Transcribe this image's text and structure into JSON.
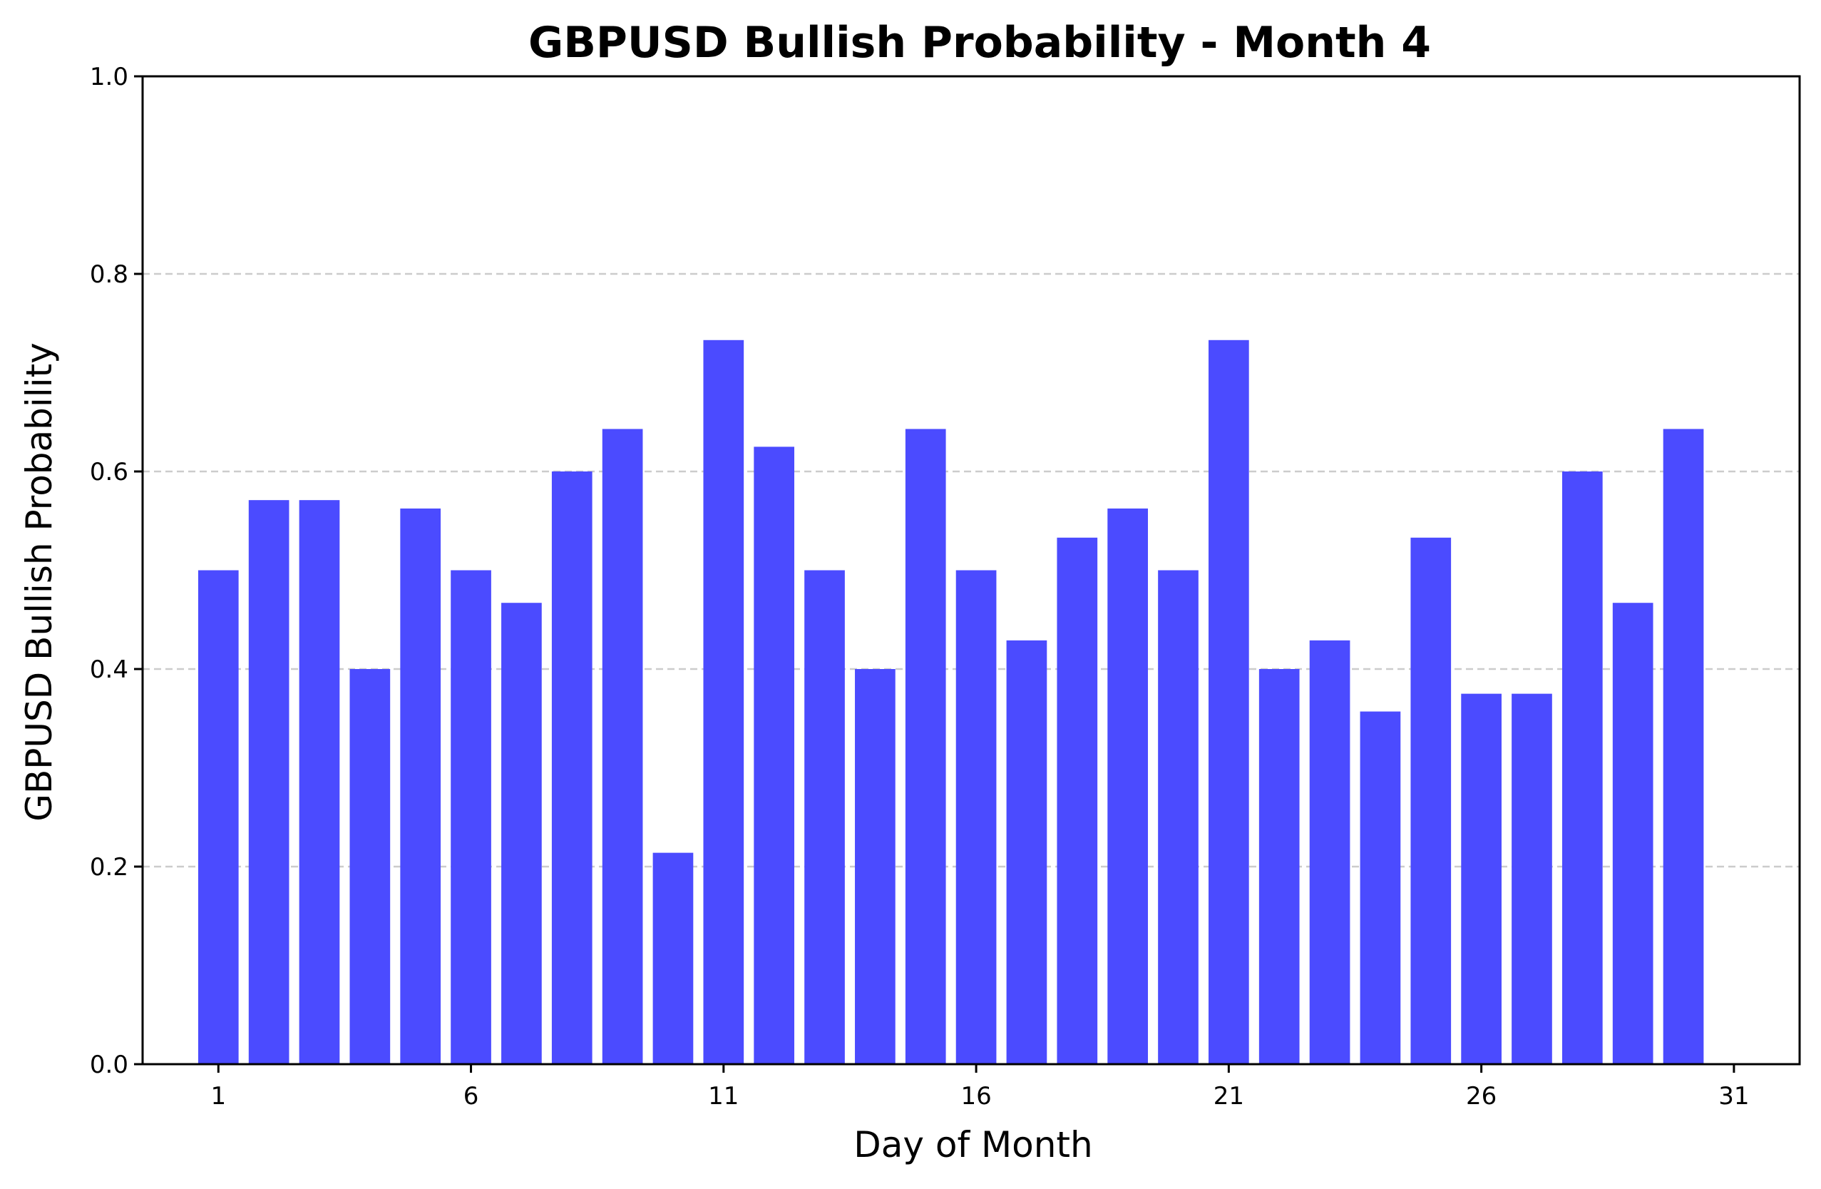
{
  "chart_data": {
    "type": "bar",
    "title": "GBPUSD Bullish Probability - Month 4",
    "xlabel": "Day of Month",
    "ylabel": "GBPUSD Bullish Probability",
    "categories": [
      1,
      2,
      3,
      4,
      5,
      6,
      7,
      8,
      9,
      10,
      11,
      12,
      13,
      14,
      15,
      16,
      17,
      18,
      19,
      20,
      21,
      22,
      23,
      24,
      25,
      26,
      27,
      28,
      29,
      30
    ],
    "values": [
      0.5,
      0.571,
      0.571,
      0.4,
      0.5625,
      0.5,
      0.467,
      0.6,
      0.643,
      0.214,
      0.733,
      0.625,
      0.5,
      0.4,
      0.643,
      0.5,
      0.429,
      0.533,
      0.5625,
      0.5,
      0.733,
      0.4,
      0.429,
      0.357,
      0.533,
      0.375,
      0.375,
      0.6,
      0.467,
      0.643
    ],
    "xlim": [
      -0.5,
      32.3
    ],
    "ylim": [
      0,
      1.0
    ],
    "xticks": [
      1,
      6,
      11,
      16,
      21,
      26,
      31
    ],
    "xtick_labels": [
      "1",
      "6",
      "11",
      "16",
      "21",
      "26",
      "31"
    ],
    "yticks": [
      0.0,
      0.2,
      0.4,
      0.6,
      0.8,
      1.0
    ],
    "ytick_labels": [
      "0.0",
      "0.2",
      "0.4",
      "0.6",
      "0.8",
      "1.0"
    ],
    "grid": {
      "axis": "y",
      "style": "dashed"
    },
    "bar_color": "#4b4bff"
  }
}
